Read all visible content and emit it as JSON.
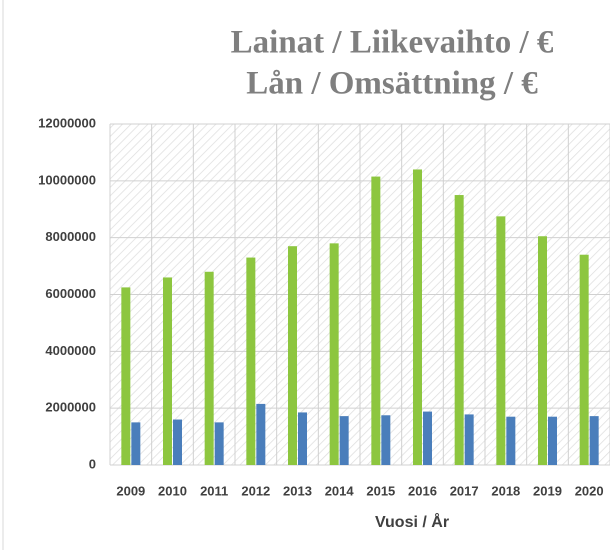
{
  "chart_data": {
    "type": "bar",
    "title": [
      "Lainat / Liikevaihto / €",
      "Lån / Omsättning / €"
    ],
    "x_label": "Vuosi / År",
    "categories": [
      "2009",
      "2010",
      "2011",
      "2012",
      "2013",
      "2014",
      "2015",
      "2016",
      "2017",
      "2018",
      "2019",
      "2020"
    ],
    "series": [
      {
        "color": "#8dc63f",
        "values": [
          6250000,
          6600000,
          6800000,
          7300000,
          7700000,
          7800000,
          10150000,
          10400000,
          9500000,
          8750000,
          8050000,
          7400000
        ]
      },
      {
        "color": "#4a7ebb",
        "values": [
          1500000,
          1600000,
          1500000,
          2150000,
          1850000,
          1720000,
          1750000,
          1880000,
          1780000,
          1700000,
          1700000,
          1720000
        ]
      }
    ],
    "ylim": [
      0,
      12000000
    ],
    "yticks": [
      0,
      2000000,
      4000000,
      6000000,
      8000000,
      10000000,
      12000000
    ],
    "grid": true
  }
}
